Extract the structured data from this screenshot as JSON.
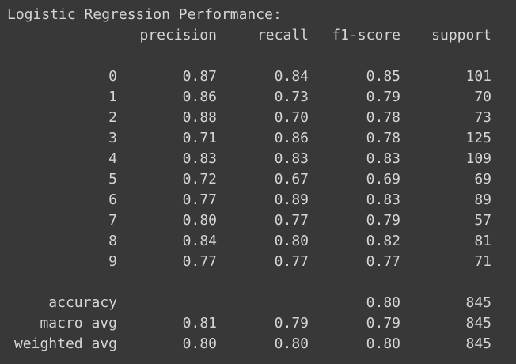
{
  "title": "Logistic Regression Performance:",
  "header": {
    "precision": "precision",
    "recall": "recall",
    "f1": "f1-score",
    "support": "support"
  },
  "rows": [
    {
      "label": "0",
      "precision": "0.87",
      "recall": "0.84",
      "f1": "0.85",
      "support": "101"
    },
    {
      "label": "1",
      "precision": "0.86",
      "recall": "0.73",
      "f1": "0.79",
      "support": "70"
    },
    {
      "label": "2",
      "precision": "0.88",
      "recall": "0.70",
      "f1": "0.78",
      "support": "73"
    },
    {
      "label": "3",
      "precision": "0.71",
      "recall": "0.86",
      "f1": "0.78",
      "support": "125"
    },
    {
      "label": "4",
      "precision": "0.83",
      "recall": "0.83",
      "f1": "0.83",
      "support": "109"
    },
    {
      "label": "5",
      "precision": "0.72",
      "recall": "0.67",
      "f1": "0.69",
      "support": "69"
    },
    {
      "label": "6",
      "precision": "0.77",
      "recall": "0.89",
      "f1": "0.83",
      "support": "89"
    },
    {
      "label": "7",
      "precision": "0.80",
      "recall": "0.77",
      "f1": "0.79",
      "support": "57"
    },
    {
      "label": "8",
      "precision": "0.84",
      "recall": "0.80",
      "f1": "0.82",
      "support": "81"
    },
    {
      "label": "9",
      "precision": "0.77",
      "recall": "0.77",
      "f1": "0.77",
      "support": "71"
    }
  ],
  "summary": [
    {
      "label": "accuracy",
      "precision": "",
      "recall": "",
      "f1": "0.80",
      "support": "845"
    },
    {
      "label": "macro avg",
      "precision": "0.81",
      "recall": "0.79",
      "f1": "0.79",
      "support": "845"
    },
    {
      "label": "weighted avg",
      "precision": "0.80",
      "recall": "0.80",
      "f1": "0.80",
      "support": "845"
    }
  ],
  "colors": {
    "background": "#383838",
    "text": "#d4d4d4"
  }
}
